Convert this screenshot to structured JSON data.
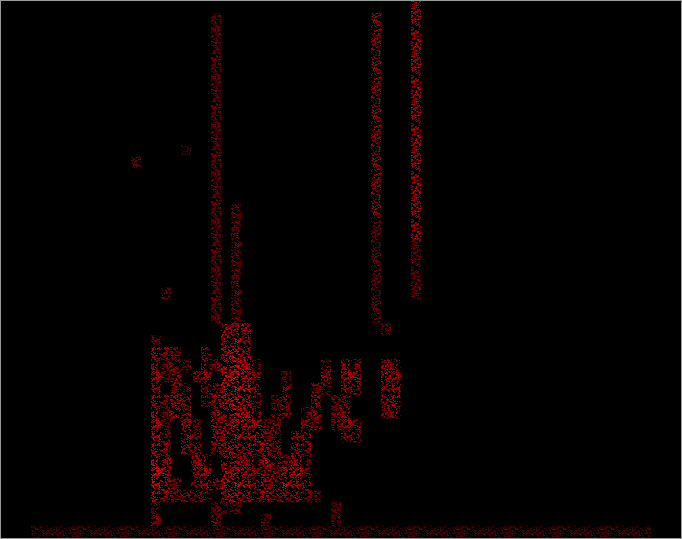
{
  "chart_data": {
    "type": "heatmap",
    "color": "#ff0000",
    "tick_labels": false,
    "grid": false,
    "xlim": [
      0,
      68
    ],
    "ylim": [
      0,
      45
    ],
    "color_range": [
      0,
      10
    ],
    "cells": [
      [
        22,
        17,
        5
      ],
      [
        23,
        17,
        5
      ],
      [
        24,
        17,
        5
      ],
      [
        38,
        17,
        2
      ],
      [
        15,
        16,
        2
      ],
      [
        22,
        16,
        5
      ],
      [
        23,
        16,
        6
      ],
      [
        24,
        16,
        4
      ],
      [
        15,
        15,
        5
      ],
      [
        16,
        15,
        4
      ],
      [
        17,
        15,
        3
      ],
      [
        20,
        15,
        4
      ],
      [
        22,
        15,
        6
      ],
      [
        23,
        15,
        7
      ],
      [
        24,
        15,
        5
      ],
      [
        15,
        14,
        5
      ],
      [
        16,
        14,
        3
      ],
      [
        17,
        14,
        3
      ],
      [
        18,
        14,
        2
      ],
      [
        20,
        14,
        5
      ],
      [
        21,
        14,
        3
      ],
      [
        22,
        14,
        7
      ],
      [
        23,
        14,
        8
      ],
      [
        24,
        14,
        6
      ],
      [
        25,
        14,
        3
      ],
      [
        32,
        14,
        3
      ],
      [
        34,
        14,
        4
      ],
      [
        35,
        14,
        4
      ],
      [
        38,
        14,
        4
      ],
      [
        39,
        14,
        3
      ],
      [
        15,
        13,
        5
      ],
      [
        16,
        13,
        2
      ],
      [
        17,
        13,
        4
      ],
      [
        19,
        13,
        3
      ],
      [
        20,
        13,
        4
      ],
      [
        22,
        13,
        8
      ],
      [
        23,
        13,
        8
      ],
      [
        24,
        13,
        6
      ],
      [
        25,
        13,
        3
      ],
      [
        28,
        13,
        2
      ],
      [
        32,
        13,
        4
      ],
      [
        34,
        13,
        5
      ],
      [
        35,
        13,
        5
      ],
      [
        38,
        13,
        5
      ],
      [
        39,
        13,
        4
      ],
      [
        15,
        12,
        4
      ],
      [
        17,
        12,
        4
      ],
      [
        18,
        12,
        2
      ],
      [
        20,
        12,
        3
      ],
      [
        21,
        12,
        3
      ],
      [
        22,
        12,
        7
      ],
      [
        23,
        12,
        9
      ],
      [
        24,
        12,
        7
      ],
      [
        25,
        12,
        4
      ],
      [
        28,
        12,
        3
      ],
      [
        31,
        12,
        3
      ],
      [
        32,
        12,
        3
      ],
      [
        34,
        12,
        4
      ],
      [
        35,
        12,
        4
      ],
      [
        38,
        12,
        4
      ],
      [
        39,
        12,
        5
      ],
      [
        15,
        11,
        5
      ],
      [
        16,
        11,
        3
      ],
      [
        17,
        11,
        5
      ],
      [
        18,
        11,
        3
      ],
      [
        20,
        11,
        3
      ],
      [
        21,
        11,
        4
      ],
      [
        22,
        11,
        6
      ],
      [
        23,
        11,
        8
      ],
      [
        24,
        11,
        6
      ],
      [
        25,
        11,
        3
      ],
      [
        27,
        11,
        2
      ],
      [
        28,
        11,
        3
      ],
      [
        31,
        11,
        4
      ],
      [
        33,
        11,
        3
      ],
      [
        34,
        11,
        3
      ],
      [
        38,
        11,
        5
      ],
      [
        39,
        11,
        5
      ],
      [
        15,
        10,
        6
      ],
      [
        16,
        10,
        3
      ],
      [
        17,
        10,
        5
      ],
      [
        18,
        10,
        4
      ],
      [
        21,
        10,
        4
      ],
      [
        22,
        10,
        5
      ],
      [
        23,
        10,
        7
      ],
      [
        24,
        10,
        6
      ],
      [
        25,
        10,
        5
      ],
      [
        27,
        10,
        3
      ],
      [
        28,
        10,
        3
      ],
      [
        30,
        10,
        3
      ],
      [
        31,
        10,
        4
      ],
      [
        33,
        10,
        3
      ],
      [
        34,
        10,
        4
      ],
      [
        38,
        10,
        3
      ],
      [
        39,
        10,
        4
      ],
      [
        15,
        9,
        6
      ],
      [
        16,
        9,
        2
      ],
      [
        18,
        9,
        5
      ],
      [
        19,
        9,
        2
      ],
      [
        21,
        9,
        5
      ],
      [
        22,
        9,
        4
      ],
      [
        23,
        9,
        6
      ],
      [
        24,
        9,
        5
      ],
      [
        25,
        9,
        5
      ],
      [
        26,
        9,
        3
      ],
      [
        27,
        9,
        3
      ],
      [
        30,
        9,
        4
      ],
      [
        31,
        9,
        3
      ],
      [
        33,
        9,
        3
      ],
      [
        34,
        9,
        4
      ],
      [
        35,
        9,
        3
      ],
      [
        15,
        8,
        6
      ],
      [
        16,
        8,
        3
      ],
      [
        18,
        8,
        5
      ],
      [
        19,
        8,
        3
      ],
      [
        21,
        8,
        5
      ],
      [
        22,
        8,
        5
      ],
      [
        23,
        8,
        6
      ],
      [
        24,
        8,
        5
      ],
      [
        25,
        8,
        6
      ],
      [
        26,
        8,
        4
      ],
      [
        27,
        8,
        3
      ],
      [
        29,
        8,
        4
      ],
      [
        30,
        8,
        4
      ],
      [
        34,
        8,
        3
      ],
      [
        35,
        8,
        3
      ],
      [
        15,
        7,
        6
      ],
      [
        16,
        7,
        4
      ],
      [
        18,
        7,
        4
      ],
      [
        19,
        7,
        4
      ],
      [
        21,
        7,
        3
      ],
      [
        22,
        7,
        5
      ],
      [
        23,
        7,
        5
      ],
      [
        24,
        7,
        4
      ],
      [
        25,
        7,
        5
      ],
      [
        26,
        7,
        5
      ],
      [
        27,
        7,
        3
      ],
      [
        29,
        7,
        4
      ],
      [
        30,
        7,
        4
      ],
      [
        15,
        6,
        8
      ],
      [
        16,
        6,
        5
      ],
      [
        19,
        6,
        5
      ],
      [
        20,
        6,
        4
      ],
      [
        22,
        6,
        5
      ],
      [
        23,
        6,
        5
      ],
      [
        24,
        6,
        4
      ],
      [
        25,
        6,
        4
      ],
      [
        26,
        6,
        6
      ],
      [
        27,
        6,
        4
      ],
      [
        28,
        6,
        3
      ],
      [
        29,
        6,
        5
      ],
      [
        30,
        6,
        3
      ],
      [
        15,
        5,
        8
      ],
      [
        16,
        5,
        6
      ],
      [
        19,
        5,
        4
      ],
      [
        20,
        5,
        5
      ],
      [
        22,
        5,
        6
      ],
      [
        23,
        5,
        6
      ],
      [
        24,
        5,
        5
      ],
      [
        25,
        5,
        3
      ],
      [
        26,
        5,
        5
      ],
      [
        27,
        5,
        3
      ],
      [
        28,
        5,
        6
      ],
      [
        29,
        5,
        6
      ],
      [
        30,
        5,
        3
      ],
      [
        15,
        4,
        8
      ],
      [
        16,
        4,
        5
      ],
      [
        17,
        4,
        3
      ],
      [
        19,
        4,
        3
      ],
      [
        20,
        4,
        5
      ],
      [
        21,
        4,
        3
      ],
      [
        22,
        4,
        7
      ],
      [
        23,
        4,
        7
      ],
      [
        24,
        4,
        6
      ],
      [
        25,
        4,
        4
      ],
      [
        26,
        4,
        5
      ],
      [
        27,
        4,
        4
      ],
      [
        28,
        4,
        7
      ],
      [
        29,
        4,
        5
      ],
      [
        30,
        4,
        4
      ],
      [
        15,
        3,
        6
      ],
      [
        16,
        3,
        4
      ],
      [
        17,
        3,
        3
      ],
      [
        18,
        3,
        3
      ],
      [
        19,
        3,
        3
      ],
      [
        20,
        3,
        3
      ],
      [
        22,
        3,
        5
      ],
      [
        23,
        3,
        6
      ],
      [
        24,
        3,
        5
      ],
      [
        25,
        3,
        3
      ],
      [
        26,
        3,
        5
      ],
      [
        27,
        3,
        3
      ],
      [
        28,
        3,
        4
      ],
      [
        29,
        3,
        4
      ],
      [
        30,
        3,
        3
      ],
      [
        31,
        3,
        2
      ],
      [
        15,
        2,
        2
      ],
      [
        21,
        2,
        2
      ],
      [
        22,
        2,
        2
      ],
      [
        23,
        2,
        2
      ],
      [
        33,
        2,
        2
      ],
      [
        15,
        1,
        3
      ],
      [
        21,
        1,
        3
      ],
      [
        26,
        1,
        2
      ],
      [
        33,
        1,
        2
      ],
      [
        13,
        31,
        2
      ],
      [
        16,
        20,
        2
      ],
      [
        18,
        32,
        1
      ],
      [
        21,
        18,
        2
      ],
      [
        21,
        19,
        2
      ],
      [
        21,
        20,
        2
      ],
      [
        21,
        21,
        2
      ],
      [
        21,
        22,
        2
      ],
      [
        21,
        23,
        2
      ],
      [
        21,
        24,
        2
      ],
      [
        21,
        25,
        2
      ],
      [
        21,
        26,
        2
      ],
      [
        21,
        27,
        2
      ],
      [
        21,
        28,
        2
      ],
      [
        21,
        29,
        2
      ],
      [
        21,
        30,
        2
      ],
      [
        21,
        31,
        2
      ],
      [
        21,
        32,
        2
      ],
      [
        21,
        33,
        2
      ],
      [
        21,
        34,
        2
      ],
      [
        21,
        35,
        2
      ],
      [
        21,
        36,
        2
      ],
      [
        21,
        37,
        2
      ],
      [
        21,
        38,
        2
      ],
      [
        21,
        39,
        2
      ],
      [
        21,
        40,
        2
      ],
      [
        21,
        41,
        2
      ],
      [
        21,
        42,
        2
      ],
      [
        21,
        43,
        2
      ],
      [
        23,
        18,
        2
      ],
      [
        23,
        19,
        2
      ],
      [
        23,
        20,
        2
      ],
      [
        23,
        21,
        2
      ],
      [
        23,
        22,
        2
      ],
      [
        23,
        23,
        2
      ],
      [
        23,
        24,
        2
      ],
      [
        23,
        25,
        2
      ],
      [
        23,
        26,
        2
      ],
      [
        23,
        27,
        2
      ],
      [
        37,
        18,
        2
      ],
      [
        37,
        19,
        2
      ],
      [
        37,
        20,
        2
      ],
      [
        37,
        21,
        2
      ],
      [
        37,
        22,
        2
      ],
      [
        37,
        23,
        2
      ],
      [
        37,
        24,
        2
      ],
      [
        37,
        25,
        2
      ],
      [
        37,
        26,
        2
      ],
      [
        37,
        27,
        4
      ],
      [
        37,
        28,
        4
      ],
      [
        37,
        29,
        4
      ],
      [
        37,
        30,
        4
      ],
      [
        37,
        31,
        4
      ],
      [
        37,
        32,
        4
      ],
      [
        37,
        33,
        4
      ],
      [
        37,
        34,
        4
      ],
      [
        37,
        35,
        4
      ],
      [
        37,
        36,
        4
      ],
      [
        37,
        37,
        4
      ],
      [
        37,
        38,
        4
      ],
      [
        37,
        39,
        4
      ],
      [
        37,
        40,
        4
      ],
      [
        37,
        41,
        4
      ],
      [
        37,
        42,
        4
      ],
      [
        37,
        43,
        4
      ],
      [
        41,
        20,
        2
      ],
      [
        41,
        21,
        2
      ],
      [
        41,
        22,
        2
      ],
      [
        41,
        23,
        2
      ],
      [
        41,
        24,
        2
      ],
      [
        41,
        25,
        5
      ],
      [
        41,
        26,
        5
      ],
      [
        41,
        27,
        5
      ],
      [
        41,
        28,
        5
      ],
      [
        41,
        29,
        5
      ],
      [
        41,
        30,
        5
      ],
      [
        41,
        31,
        5
      ],
      [
        41,
        32,
        5
      ],
      [
        41,
        33,
        5
      ],
      [
        41,
        34,
        5
      ],
      [
        41,
        35,
        5
      ],
      [
        41,
        36,
        5
      ],
      [
        41,
        37,
        5
      ],
      [
        41,
        38,
        5
      ],
      [
        41,
        39,
        5
      ],
      [
        41,
        40,
        5
      ],
      [
        41,
        41,
        5
      ],
      [
        41,
        42,
        5
      ],
      [
        41,
        43,
        5
      ],
      [
        41,
        44,
        5
      ],
      [
        3,
        0,
        1
      ],
      [
        4,
        0,
        1
      ],
      [
        5,
        0,
        1
      ],
      [
        6,
        0,
        1
      ],
      [
        7,
        0,
        1
      ],
      [
        8,
        0,
        1
      ],
      [
        9,
        0,
        1
      ],
      [
        10,
        0,
        1
      ],
      [
        11,
        0,
        1
      ],
      [
        12,
        0,
        1
      ],
      [
        13,
        0,
        1
      ],
      [
        14,
        0,
        1
      ],
      [
        15,
        0,
        1
      ],
      [
        16,
        0,
        1
      ],
      [
        17,
        0,
        1
      ],
      [
        18,
        0,
        1
      ],
      [
        19,
        0,
        1
      ],
      [
        20,
        0,
        1
      ],
      [
        21,
        0,
        1
      ],
      [
        22,
        0,
        1
      ],
      [
        23,
        0,
        1
      ],
      [
        24,
        0,
        1
      ],
      [
        25,
        0,
        1
      ],
      [
        26,
        0,
        1
      ],
      [
        27,
        0,
        1
      ],
      [
        28,
        0,
        1
      ],
      [
        29,
        0,
        1
      ],
      [
        30,
        0,
        1
      ],
      [
        31,
        0,
        1
      ],
      [
        32,
        0,
        1
      ],
      [
        33,
        0,
        1
      ],
      [
        34,
        0,
        1
      ],
      [
        35,
        0,
        1
      ],
      [
        36,
        0,
        1
      ],
      [
        37,
        0,
        1
      ],
      [
        38,
        0,
        1
      ],
      [
        39,
        0,
        1
      ],
      [
        40,
        0,
        1
      ],
      [
        41,
        0,
        1
      ],
      [
        42,
        0,
        1
      ],
      [
        43,
        0,
        1
      ],
      [
        44,
        0,
        1
      ],
      [
        45,
        0,
        1
      ],
      [
        46,
        0,
        1
      ],
      [
        47,
        0,
        1
      ],
      [
        48,
        0,
        1
      ],
      [
        49,
        0,
        1
      ],
      [
        50,
        0,
        1
      ],
      [
        51,
        0,
        1
      ],
      [
        52,
        0,
        1
      ],
      [
        53,
        0,
        1
      ],
      [
        54,
        0,
        1
      ],
      [
        55,
        0,
        1
      ],
      [
        56,
        0,
        1
      ],
      [
        57,
        0,
        1
      ],
      [
        58,
        0,
        1
      ],
      [
        59,
        0,
        1
      ],
      [
        60,
        0,
        1
      ],
      [
        61,
        0,
        1
      ],
      [
        62,
        0,
        1
      ],
      [
        63,
        0,
        1
      ],
      [
        64,
        0,
        1
      ]
    ]
  }
}
